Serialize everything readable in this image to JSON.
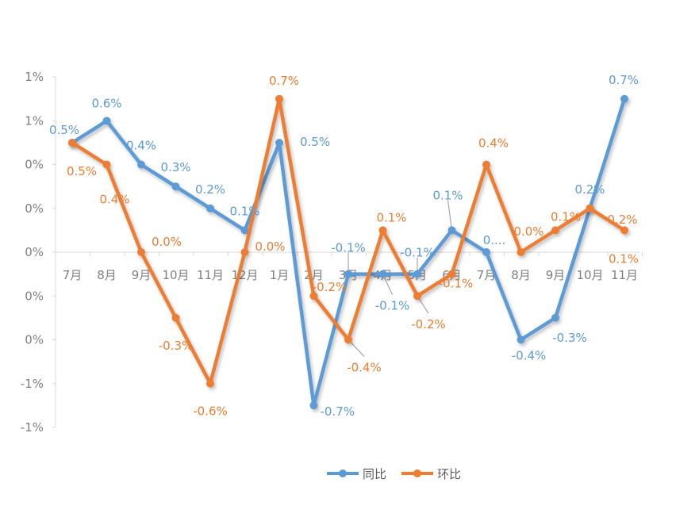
{
  "chart_data": {
    "type": "line",
    "categories": [
      "7月",
      "8月",
      "9月",
      "10月",
      "11月",
      "12月",
      "1月",
      "2月",
      "3月",
      "4月",
      "5月",
      "6月",
      "7月",
      "8月",
      "9月",
      "10月",
      "11月"
    ],
    "y_tick_labels": [
      "1%",
      "1%",
      "0%",
      "0%",
      "0%",
      "0%",
      "0%",
      "-1%",
      "-1%"
    ],
    "ylim": [
      -0.8,
      0.8
    ],
    "grid": false,
    "legend_position": "bottom",
    "series": [
      {
        "name": "同比",
        "color": "#5b9bd5",
        "values": [
          0.5,
          0.6,
          0.4,
          0.3,
          0.2,
          0.1,
          0.5,
          -0.7,
          -0.1,
          -0.1,
          -0.1,
          0.1,
          0.0,
          -0.4,
          -0.3,
          0.2,
          0.7
        ],
        "labels": [
          "0.5%",
          "0.6%",
          "0.4%",
          "0.3%",
          "0.2%",
          "0.1%",
          "0.5%",
          "-0.7%",
          "-0.1%",
          "-0.1%",
          "-0.1%",
          "0.1%",
          "0....",
          "-0.4%",
          "-0.3%",
          "0.2%",
          "0.7%"
        ]
      },
      {
        "name": "环比",
        "color": "#ed7d31",
        "values": [
          0.5,
          0.4,
          0.0,
          -0.3,
          -0.6,
          0.0,
          0.7,
          -0.2,
          -0.4,
          0.1,
          -0.2,
          -0.1,
          0.4,
          0.0,
          0.1,
          0.2,
          0.1
        ],
        "labels": [
          "0.5%",
          "0.4%",
          "0.0%",
          "-0.3%",
          "-0.6%",
          "0.0%",
          "0.7%",
          "-0.2%",
          "-0.4%",
          "0.1%",
          "-0.2%",
          "-0.1%",
          "0.4%",
          "0.0%",
          "0.1%",
          "0.2%",
          "0.1%"
        ]
      }
    ]
  }
}
